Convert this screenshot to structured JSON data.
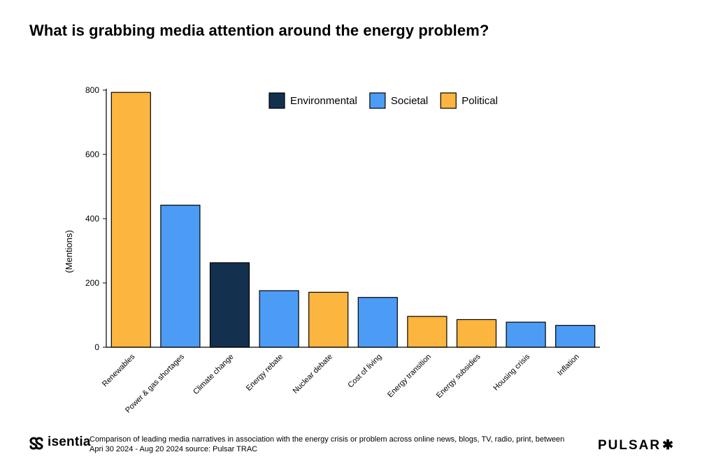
{
  "title": "What is grabbing media attention around the energy problem?",
  "chart_data": {
    "type": "bar",
    "title": "What is grabbing media attention around the energy problem?",
    "xlabel": "",
    "ylabel": "(Mentions)",
    "ylim": [
      0,
      800
    ],
    "yticks": [
      0,
      200,
      400,
      600,
      800
    ],
    "grid": false,
    "legend_position": "top-center",
    "categories": [
      "Renewables",
      "Power & gas shortages",
      "Climate change",
      "Energy rebate",
      "Nuclear debate",
      "Cost of living",
      "Energy transition",
      "Energy subsidies",
      "Housing crisis",
      "Inflation"
    ],
    "values": [
      793,
      442,
      263,
      176,
      171,
      155,
      96,
      86,
      78,
      68
    ],
    "groups": [
      "Political",
      "Societal",
      "Environmental",
      "Societal",
      "Political",
      "Societal",
      "Political",
      "Political",
      "Societal",
      "Societal"
    ],
    "legend": [
      {
        "name": "Environmental",
        "color": "#14304f"
      },
      {
        "name": "Societal",
        "color": "#4c9cf5"
      },
      {
        "name": "Political",
        "color": "#fcb53f"
      }
    ]
  },
  "footer": {
    "isentia_logo": "isentia",
    "note": "Comparison of leading media narratives in association with the energy crisis or problem across online news, blogs, TV, radio, print, between Apri 30 2024 - Aug 20 2024 source: Pulsar TRAC",
    "pulsar_logo": "PULSAR",
    "pulsar_mark": "✱"
  }
}
